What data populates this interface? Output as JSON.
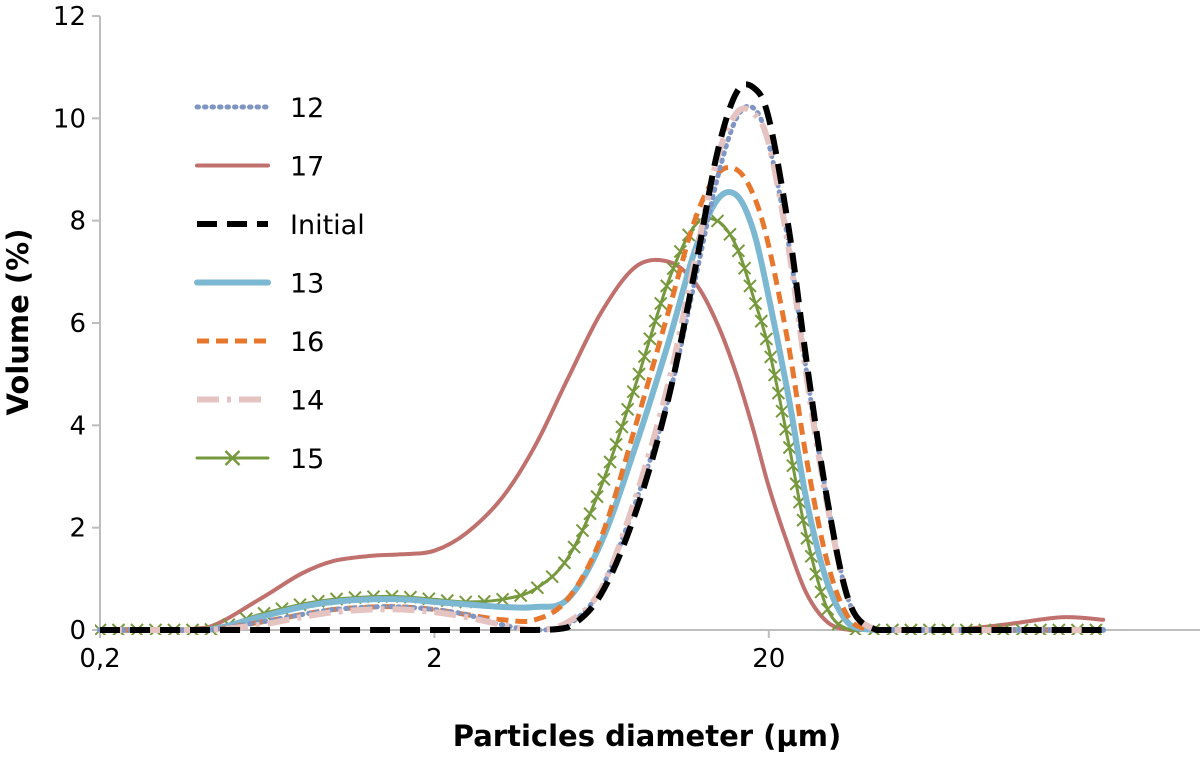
{
  "chart_data": {
    "type": "line",
    "title": "",
    "xlabel": "Particles diameter (µm)",
    "ylabel": "Volume (%)",
    "x_scale": "log",
    "xlim": [
      0.2,
      200
    ],
    "ylim": [
      0,
      12
    ],
    "x_ticks": [
      0.2,
      2,
      20
    ],
    "x_tick_labels": [
      "0,2",
      "2",
      "20"
    ],
    "y_ticks": [
      0,
      2,
      4,
      6,
      8,
      10,
      12
    ],
    "y_tick_labels": [
      "0",
      "2",
      "4",
      "6",
      "8",
      "10",
      "12"
    ],
    "grid": false,
    "legend_position": "top-left",
    "x": [
      0.2,
      0.3,
      0.42,
      0.6,
      0.8,
      1.0,
      1.3,
      1.6,
      2.0,
      2.5,
      3.2,
      4.0,
      5.0,
      6.3,
      8.0,
      10.0,
      12.0,
      14.0,
      16.0,
      18.0,
      20.0,
      23.0,
      26.0,
      30.0,
      35.0,
      42.0,
      50.0,
      70.0,
      100.0,
      150.0,
      200.0
    ],
    "series": [
      {
        "name": "12",
        "color": "#7f96c4",
        "style": "dotted",
        "marker": "none",
        "values": [
          0,
          0,
          0,
          0.15,
          0.3,
          0.4,
          0.45,
          0.45,
          0.4,
          0.3,
          0.1,
          0,
          0.1,
          0.8,
          2.5,
          4.5,
          6.8,
          8.8,
          10.0,
          10.2,
          9.5,
          7.5,
          5.0,
          2.5,
          0.5,
          0,
          0,
          0,
          0,
          0,
          0
        ]
      },
      {
        "name": "17",
        "color": "#c0706d",
        "style": "solid",
        "marker": "none",
        "values": [
          0,
          0,
          0.05,
          0.6,
          1.1,
          1.35,
          1.45,
          1.48,
          1.55,
          1.9,
          2.6,
          3.6,
          4.9,
          6.2,
          7.1,
          7.2,
          6.8,
          6.0,
          5.0,
          3.9,
          2.8,
          1.6,
          0.7,
          0.15,
          0,
          0,
          0,
          0,
          0.1,
          0.25,
          0.2
        ]
      },
      {
        "name": "Initial",
        "color": "#000000",
        "style": "dashed-long",
        "marker": "none",
        "values": [
          0,
          0,
          0,
          0,
          0,
          0,
          0,
          0,
          0,
          0,
          0,
          0,
          0.05,
          0.7,
          2.3,
          4.5,
          7.0,
          9.3,
          10.5,
          10.6,
          10.0,
          7.8,
          5.2,
          2.5,
          0.5,
          0,
          0,
          0,
          0,
          0,
          0
        ]
      },
      {
        "name": "13",
        "color": "#7db8d2",
        "style": "solid-thick",
        "marker": "none",
        "values": [
          0,
          0,
          0,
          0.25,
          0.45,
          0.55,
          0.6,
          0.6,
          0.55,
          0.5,
          0.45,
          0.45,
          0.6,
          1.7,
          3.6,
          5.6,
          7.4,
          8.4,
          8.5,
          7.8,
          6.5,
          4.5,
          2.5,
          0.9,
          0.1,
          0,
          0,
          0,
          0,
          0,
          0
        ]
      },
      {
        "name": "16",
        "color": "#e8772e",
        "style": "dashed",
        "marker": "none",
        "values": [
          0,
          0,
          0,
          0.15,
          0.3,
          0.4,
          0.45,
          0.45,
          0.4,
          0.3,
          0.2,
          0.2,
          0.6,
          1.8,
          4.0,
          6.2,
          8.0,
          8.9,
          9.0,
          8.5,
          7.5,
          5.5,
          3.3,
          1.3,
          0.2,
          0,
          0,
          0,
          0,
          0,
          0
        ]
      },
      {
        "name": "14",
        "color": "#e5c3c0",
        "style": "dashdot",
        "marker": "none",
        "values": [
          0,
          0,
          0,
          0.1,
          0.25,
          0.35,
          0.4,
          0.4,
          0.35,
          0.25,
          0.1,
          0,
          0.15,
          0.8,
          2.6,
          4.8,
          7.2,
          9.2,
          10.1,
          10.1,
          9.5,
          7.4,
          4.9,
          2.4,
          0.5,
          0,
          0,
          0,
          0,
          0,
          0
        ]
      },
      {
        "name": "15",
        "color": "#77993d",
        "style": "solid",
        "marker": "x",
        "values": [
          0,
          0,
          0,
          0.3,
          0.5,
          0.6,
          0.65,
          0.65,
          0.6,
          0.55,
          0.6,
          0.8,
          1.4,
          2.8,
          4.8,
          6.8,
          7.9,
          8.0,
          7.5,
          6.5,
          5.5,
          3.6,
          1.8,
          0.4,
          0,
          0,
          0,
          0,
          0,
          0,
          0
        ]
      }
    ]
  }
}
